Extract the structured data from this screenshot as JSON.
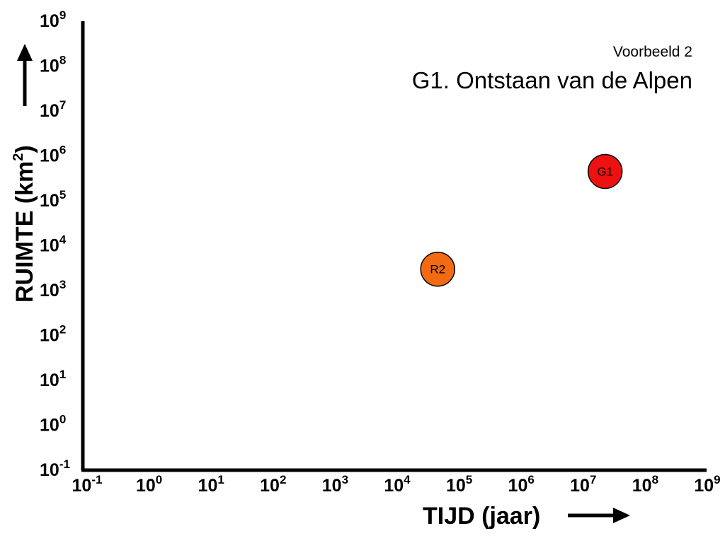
{
  "chart_data": {
    "type": "scatter",
    "subtitle": "Voorbeeld 2",
    "title": "G1. Ontstaan van de Alpen",
    "xlabel": "TIJD (jaar)",
    "ylabel_main": "RUIMTE (km",
    "ylabel_sup": "2",
    "ylabel_end": ")",
    "x_scale": "log",
    "y_scale": "log",
    "xlim_exp": [
      -1,
      9
    ],
    "ylim_exp": [
      -1,
      9
    ],
    "tick_base": "10",
    "x_ticks": [
      "-1",
      "0",
      "1",
      "2",
      "3",
      "4",
      "5",
      "6",
      "7",
      "8",
      "9"
    ],
    "y_ticks": [
      "-1",
      "0",
      "1",
      "2",
      "3",
      "4",
      "5",
      "6",
      "7",
      "8",
      "9"
    ],
    "points": [
      {
        "label": "R2",
        "x": 50000,
        "y": 3000,
        "color": "#f26a12"
      },
      {
        "label": "G1",
        "x": 25000000,
        "y": 450000,
        "color": "#ee1111"
      }
    ]
  }
}
